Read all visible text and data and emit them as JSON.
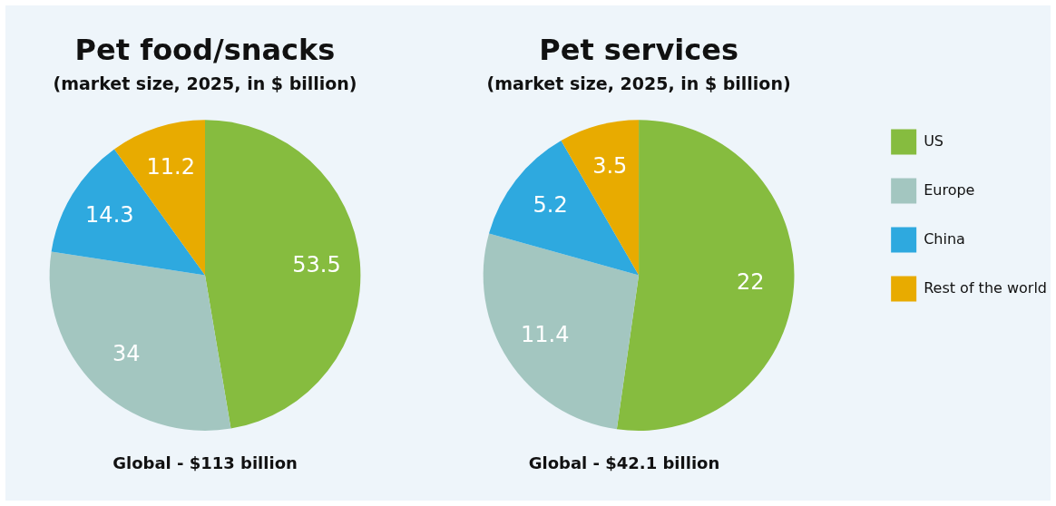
{
  "chart_data": [
    {
      "type": "pie",
      "title": "Pet food/snacks",
      "subtitle": "(market size, 2025, in $ billion)",
      "categories": [
        null,
        null,
        null,
        null
      ],
      "values": [
        53.5,
        34,
        14.3,
        11.2
      ],
      "colors": [
        "#86bc3f",
        "#a3c6c0",
        "#2ea9df",
        "#e8ab00"
      ],
      "data_labels": true,
      "legend": false,
      "annotations": [
        "Global - $113 billion"
      ]
    },
    {
      "type": "pie",
      "title": "Pet services",
      "subtitle": "(market size, 2025, in $ billion)",
      "categories": [
        "US",
        "Europe",
        "China",
        "Rest of the world"
      ],
      "values": [
        22,
        11.4,
        5.2,
        3.5
      ],
      "colors": [
        "#86bc3f",
        "#a3c6c0",
        "#2ea9df",
        "#e8ab00"
      ],
      "data_labels": true,
      "legend": "right",
      "annotations": [
        "Global - $42.1 billion"
      ]
    }
  ]
}
